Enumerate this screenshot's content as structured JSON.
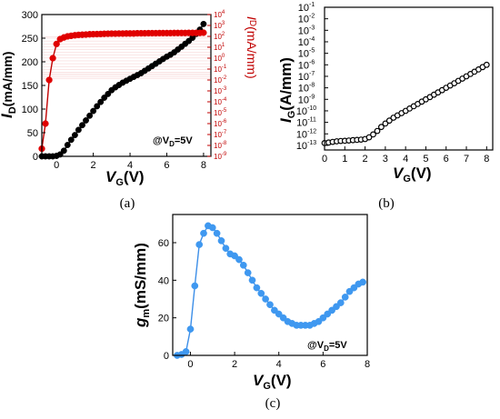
{
  "chart_data": [
    {
      "panel": "(a)",
      "type": "line",
      "xlabel_main": "V",
      "xlabel_sub": "G",
      "xlabel_tail": "(V)",
      "ylabel_main": "I",
      "ylabel_sub": "D",
      "ylabel_tail": "(mA/mm)",
      "y2label_main": "I",
      "y2label_sub": "D",
      "y2label_tail": "(mA/mm)",
      "condition": {
        "prefix": "@V",
        "sub": "D",
        "suffix": "=5V"
      },
      "xlim": [
        -0.8,
        8.4
      ],
      "ylim": [
        0,
        300
      ],
      "y2lim_log": [
        -9,
        4
      ],
      "x_ticks": [
        "0",
        "2",
        "4",
        "6",
        "8"
      ],
      "y_ticks": [
        "0",
        "50",
        "100",
        "150",
        "200",
        "250",
        "300"
      ],
      "y2_tick_exponents": [
        "4",
        "3",
        "2",
        "1",
        "0",
        "-1",
        "-2",
        "-3",
        "-4",
        "-5",
        "-6",
        "-7",
        "-8",
        "-9"
      ],
      "y2_tick_base": "10",
      "series": [
        {
          "axis": "left",
          "scale": "linear",
          "color": "#000000",
          "x": [
            -0.8,
            -0.6,
            -0.4,
            -0.2,
            0.0,
            0.2,
            0.4,
            0.6,
            0.8,
            1.0,
            1.2,
            1.4,
            1.6,
            1.8,
            2.0,
            2.2,
            2.4,
            2.6,
            2.8,
            3.0,
            3.2,
            3.4,
            3.6,
            3.8,
            4.0,
            4.2,
            4.4,
            4.6,
            4.8,
            5.0,
            5.2,
            5.4,
            5.6,
            5.8,
            6.0,
            6.2,
            6.4,
            6.6,
            6.8,
            7.0,
            7.2,
            7.4,
            7.6,
            7.8,
            8.0
          ],
          "y": [
            0,
            0,
            0,
            0,
            1,
            4,
            12,
            24,
            35,
            45,
            56,
            66,
            76,
            86,
            96,
            106,
            115,
            124,
            132,
            140,
            146,
            151,
            156,
            160,
            164,
            168,
            172,
            176,
            181,
            186,
            191,
            196,
            201,
            206,
            211,
            215,
            220,
            226,
            232,
            238,
            244,
            251,
            259,
            268,
            280
          ]
        },
        {
          "axis": "right",
          "scale": "log10",
          "color": "#c00000",
          "marker_color": "#e00000",
          "x": [
            -0.8,
            -0.6,
            -0.4,
            -0.2,
            0.0,
            0.2,
            0.4,
            0.6,
            0.8,
            1.0,
            1.2,
            1.4,
            1.6,
            1.8,
            2.0,
            2.2,
            2.4,
            2.6,
            2.8,
            3.0,
            3.2,
            3.4,
            3.6,
            3.8,
            4.0,
            4.2,
            4.4,
            4.6,
            4.8,
            5.0,
            5.2,
            5.4,
            5.6,
            5.8,
            6.0,
            6.2,
            6.4,
            6.6,
            6.8,
            7.0,
            7.2,
            7.4,
            7.6,
            7.8,
            8.0
          ],
          "y_log10": [
            -8.3,
            -6.0,
            -2.0,
            0.0,
            1.3,
            1.75,
            1.9,
            2.0,
            2.05,
            2.1,
            2.13,
            2.15,
            2.17,
            2.19,
            2.2,
            2.21,
            2.22,
            2.23,
            2.24,
            2.25,
            2.25,
            2.26,
            2.26,
            2.27,
            2.27,
            2.27,
            2.28,
            2.28,
            2.28,
            2.29,
            2.29,
            2.29,
            2.3,
            2.3,
            2.3,
            2.3,
            2.31,
            2.31,
            2.31,
            2.31,
            2.32,
            2.32,
            2.32,
            2.32,
            2.33
          ]
        }
      ]
    },
    {
      "panel": "(b)",
      "type": "line",
      "xlabel_main": "V",
      "xlabel_sub": "G",
      "xlabel_tail": "(V)",
      "ylabel_main": "I",
      "ylabel_sub": "G",
      "ylabel_tail": "(A/mm)",
      "xlim": [
        0,
        8.3
      ],
      "y_scale": "log10",
      "ylim_log": [
        -13.4,
        -1
      ],
      "x_ticks": [
        "0",
        "1",
        "2",
        "3",
        "4",
        "5",
        "6",
        "7",
        "8"
      ],
      "y_tick_exponents": [
        "-1",
        "-2",
        "-3",
        "-4",
        "-5",
        "-6",
        "-7",
        "-8",
        "-9",
        "-10",
        "-11",
        "-12",
        "-13"
      ],
      "y_tick_base": "10",
      "series": [
        {
          "color": "#000000",
          "marker": "open-circle",
          "x": [
            0.0,
            0.2,
            0.4,
            0.6,
            0.8,
            1.0,
            1.2,
            1.4,
            1.6,
            1.8,
            2.0,
            2.2,
            2.4,
            2.6,
            2.8,
            3.0,
            3.2,
            3.4,
            3.6,
            3.8,
            4.0,
            4.2,
            4.4,
            4.6,
            4.8,
            5.0,
            5.2,
            5.4,
            5.6,
            5.8,
            6.0,
            6.2,
            6.4,
            6.6,
            6.8,
            7.0,
            7.2,
            7.4,
            7.6,
            7.8,
            8.0
          ],
          "y_log10": [
            -12.8,
            -12.75,
            -12.7,
            -12.65,
            -12.62,
            -12.6,
            -12.58,
            -12.55,
            -12.52,
            -12.5,
            -12.45,
            -12.3,
            -12.05,
            -11.75,
            -11.4,
            -11.1,
            -10.85,
            -10.6,
            -10.4,
            -10.2,
            -10.0,
            -9.8,
            -9.6,
            -9.4,
            -9.2,
            -9.0,
            -8.8,
            -8.6,
            -8.4,
            -8.2,
            -8.0,
            -7.8,
            -7.6,
            -7.4,
            -7.2,
            -7.0,
            -6.8,
            -6.6,
            -6.4,
            -6.2,
            -6.0
          ]
        }
      ]
    },
    {
      "panel": "(c)",
      "type": "line",
      "xlabel_main": "V",
      "xlabel_sub": "G",
      "xlabel_tail": "(V)",
      "ylabel_main": "g",
      "ylabel_sub": "m",
      "ylabel_tail": "(mS/mm)",
      "condition": {
        "prefix": "@V",
        "sub": "D",
        "suffix": "=5V"
      },
      "xlim": [
        -0.8,
        8.0
      ],
      "ylim": [
        0,
        75
      ],
      "x_ticks": [
        "0",
        "2",
        "4",
        "6",
        "8"
      ],
      "y_ticks": [
        "0",
        "20",
        "40",
        "60"
      ],
      "series": [
        {
          "color": "#3d8fe8",
          "marker_color": "#3f98f0",
          "x": [
            -0.6,
            -0.4,
            -0.2,
            0.0,
            0.2,
            0.4,
            0.6,
            0.8,
            1.0,
            1.2,
            1.4,
            1.6,
            1.8,
            2.0,
            2.2,
            2.4,
            2.6,
            2.8,
            3.0,
            3.2,
            3.4,
            3.6,
            3.8,
            4.0,
            4.2,
            4.4,
            4.6,
            4.8,
            5.0,
            5.2,
            5.4,
            5.6,
            5.8,
            6.0,
            6.2,
            6.4,
            6.6,
            6.8,
            7.0,
            7.2,
            7.4,
            7.6,
            7.8
          ],
          "y": [
            0,
            0.5,
            2,
            14,
            37,
            59,
            65,
            69,
            68,
            65,
            61,
            57,
            54,
            53,
            51,
            48,
            44,
            40,
            36,
            33,
            30,
            27,
            24,
            22,
            20,
            18,
            17,
            16,
            16,
            16,
            16,
            17,
            18,
            20,
            22,
            24,
            26,
            28,
            31,
            34,
            36,
            38,
            39
          ]
        }
      ]
    }
  ]
}
